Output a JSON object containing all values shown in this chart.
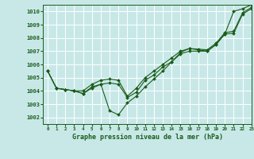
{
  "background_color": "#c8e8e8",
  "grid_color": "#ffffff",
  "line_color": "#1a5c1a",
  "marker_color": "#1a5c1a",
  "title": "Graphe pression niveau de la mer (hPa)",
  "xlim": [
    -0.5,
    23
  ],
  "ylim": [
    1001.5,
    1010.5
  ],
  "yticks": [
    1002,
    1003,
    1004,
    1005,
    1006,
    1007,
    1008,
    1009,
    1010
  ],
  "xticks": [
    0,
    1,
    2,
    3,
    4,
    5,
    6,
    7,
    8,
    9,
    10,
    11,
    12,
    13,
    14,
    15,
    16,
    17,
    18,
    19,
    20,
    21,
    22,
    23
  ],
  "series": [
    [
      1005.5,
      1004.2,
      1004.1,
      1004.0,
      1004.0,
      1004.5,
      1004.8,
      1004.9,
      1004.8,
      1003.6,
      1004.2,
      1005.0,
      1005.5,
      1006.0,
      1006.5,
      1007.0,
      1007.2,
      1007.15,
      1007.1,
      1007.6,
      1008.4,
      1008.5,
      1009.9,
      1010.3
    ],
    [
      1005.5,
      1004.2,
      1004.1,
      1004.0,
      1003.8,
      1004.2,
      1004.5,
      1004.6,
      1004.5,
      1003.5,
      1003.9,
      1004.8,
      1005.2,
      1005.8,
      1006.2,
      1006.8,
      1007.0,
      1007.0,
      1007.0,
      1007.5,
      1008.3,
      1008.35,
      1009.8,
      1010.2
    ],
    [
      1005.5,
      1004.2,
      1004.1,
      1004.0,
      1003.8,
      1004.3,
      1004.5,
      1002.5,
      1002.2,
      1003.1,
      1003.6,
      1004.3,
      1004.9,
      1005.5,
      1006.2,
      1006.9,
      1007.2,
      1007.1,
      1007.0,
      1007.5,
      1008.3,
      1010.0,
      1010.2,
      1010.5
    ]
  ]
}
